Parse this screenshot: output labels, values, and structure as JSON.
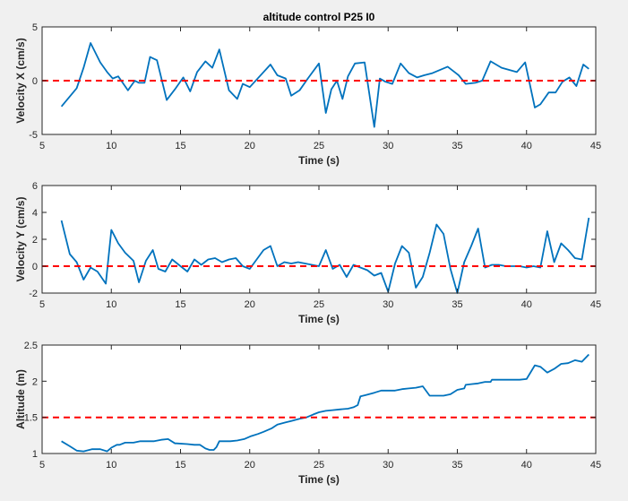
{
  "figure": {
    "background": "#f0f0f0",
    "axes_background": "#ffffff",
    "axis_color": "#262626"
  },
  "chart_data": [
    {
      "type": "line",
      "title": "altitude control P25 I0",
      "xlabel": "Time (s)",
      "ylabel": "Velocity X (cm/s)",
      "xlim": [
        5,
        45
      ],
      "ylim": [
        -5,
        5
      ],
      "xticks": [
        5,
        10,
        15,
        20,
        25,
        30,
        35,
        40,
        45
      ],
      "yticks": [
        -5,
        0,
        5
      ],
      "grid": false,
      "series": [
        {
          "color": "#0072BD",
          "style": "solid",
          "x": [
            6.4,
            7.5,
            8.0,
            8.5,
            9.2,
            9.7,
            10.1,
            10.5,
            11.2,
            11.7,
            12.0,
            12.4,
            12.8,
            13.3,
            14.0,
            14.6,
            15.2,
            15.7,
            16.2,
            16.8,
            17.3,
            17.8,
            18.5,
            19.1,
            19.5,
            20.0,
            20.5,
            21.5,
            22.0,
            22.6,
            23.0,
            23.6,
            24.2,
            25.0,
            25.5,
            25.9,
            26.3,
            26.7,
            27.1,
            27.6,
            28.3,
            29.0,
            29.4,
            29.8,
            30.3,
            30.9,
            31.5,
            32.1,
            32.6,
            33.2,
            34.3,
            35.1,
            35.6,
            36.3,
            36.8,
            37.4,
            38.2,
            39.3,
            39.9,
            40.6,
            41.0,
            41.6,
            42.1,
            42.6,
            43.1,
            43.6,
            44.1,
            44.5
          ],
          "y": [
            -2.4,
            -0.7,
            1.2,
            3.5,
            1.7,
            0.8,
            0.2,
            0.4,
            -0.9,
            0.0,
            -0.2,
            -0.2,
            2.2,
            1.9,
            -1.8,
            -0.8,
            0.3,
            -1.0,
            0.8,
            1.8,
            1.2,
            2.9,
            -0.9,
            -1.7,
            -0.3,
            -0.6,
            0.1,
            1.5,
            0.5,
            0.2,
            -1.4,
            -0.9,
            0.2,
            1.6,
            -3.0,
            -0.8,
            0.0,
            -1.7,
            0.4,
            1.6,
            1.7,
            -4.3,
            0.2,
            -0.1,
            -0.3,
            1.6,
            0.7,
            0.3,
            0.5,
            0.7,
            1.3,
            0.5,
            -0.3,
            -0.2,
            0.0,
            1.8,
            1.2,
            0.8,
            1.7,
            -2.5,
            -2.2,
            -1.1,
            -1.1,
            -0.1,
            0.3,
            -0.5,
            1.5,
            1.1
          ]
        },
        {
          "color": "#FF0000",
          "style": "dashed",
          "x": [
            5,
            45
          ],
          "y": [
            0,
            0
          ]
        }
      ]
    },
    {
      "type": "line",
      "title": "",
      "xlabel": "Time (s)",
      "ylabel": "Velocity Y (cm/s)",
      "xlim": [
        5,
        45
      ],
      "ylim": [
        -2,
        6
      ],
      "xticks": [
        5,
        10,
        15,
        20,
        25,
        30,
        35,
        40,
        45
      ],
      "yticks": [
        -2,
        0,
        2,
        4,
        6
      ],
      "grid": false,
      "series": [
        {
          "color": "#0072BD",
          "style": "solid",
          "x": [
            6.4,
            7.0,
            7.5,
            8.0,
            8.5,
            9.0,
            9.6,
            10.0,
            10.5,
            11.0,
            11.6,
            12.0,
            12.5,
            13.0,
            13.4,
            13.9,
            14.4,
            15.0,
            15.5,
            16.0,
            16.5,
            17.0,
            17.5,
            18.0,
            18.5,
            19.0,
            19.5,
            20.0,
            20.5,
            21.0,
            21.5,
            22.0,
            22.5,
            23.0,
            23.5,
            24.0,
            24.5,
            25.0,
            25.5,
            26.0,
            26.5,
            27.0,
            27.5,
            28.0,
            28.5,
            29.0,
            29.5,
            30.0,
            30.5,
            31.0,
            31.5,
            32.0,
            32.5,
            33.0,
            33.5,
            34.0,
            34.5,
            35.0,
            35.5,
            36.0,
            36.5,
            37.0,
            37.5,
            38.0,
            38.5,
            39.0,
            39.5,
            40.0,
            40.5,
            41.0,
            41.5,
            42.0,
            42.5,
            43.0,
            43.5,
            44.0,
            44.5
          ],
          "y": [
            3.4,
            0.9,
            0.3,
            -1.0,
            -0.1,
            -0.4,
            -1.3,
            2.7,
            1.7,
            1.0,
            0.4,
            -1.2,
            0.4,
            1.2,
            -0.2,
            -0.4,
            0.5,
            0.0,
            -0.4,
            0.5,
            0.1,
            0.5,
            0.6,
            0.3,
            0.5,
            0.6,
            0.0,
            -0.2,
            0.5,
            1.2,
            1.5,
            0.0,
            0.3,
            0.2,
            0.3,
            0.2,
            0.1,
            0.0,
            1.2,
            -0.2,
            0.1,
            -0.8,
            0.1,
            -0.1,
            -0.3,
            -0.7,
            -0.5,
            -1.9,
            0.2,
            1.5,
            1.0,
            -1.6,
            -0.8,
            1.0,
            3.1,
            2.4,
            -0.2,
            -2.0,
            0.3,
            1.5,
            2.8,
            -0.1,
            0.1,
            0.1,
            0.0,
            0.0,
            0.0,
            -0.1,
            0.0,
            -0.1,
            2.6,
            0.3,
            1.7,
            1.2,
            0.6,
            0.5,
            3.6
          ]
        },
        {
          "color": "#FF0000",
          "style": "dashed",
          "x": [
            5,
            45
          ],
          "y": [
            0,
            0
          ]
        }
      ]
    },
    {
      "type": "line",
      "title": "",
      "xlabel": "Time (s)",
      "ylabel": "Altitude (m)",
      "xlim": [
        5,
        45
      ],
      "ylim": [
        1,
        2.5
      ],
      "xticks": [
        5,
        10,
        15,
        20,
        25,
        30,
        35,
        40,
        45
      ],
      "yticks": [
        1,
        1.5,
        2,
        2.5
      ],
      "grid": false,
      "series": [
        {
          "color": "#0072BD",
          "style": "solid",
          "x": [
            6.4,
            7.0,
            7.5,
            8.0,
            8.6,
            9.2,
            9.7,
            10.0,
            10.4,
            10.6,
            11.0,
            11.6,
            12.1,
            12.6,
            13.1,
            13.6,
            14.1,
            14.6,
            14.7,
            15.5,
            16.0,
            16.4,
            16.8,
            17.1,
            17.4,
            17.6,
            17.8,
            18.1,
            18.6,
            19.1,
            19.6,
            20.1,
            20.6,
            21.0,
            21.6,
            22.0,
            22.6,
            23.0,
            23.6,
            24.1,
            24.6,
            25.0,
            25.5,
            26.0,
            26.5,
            27.1,
            27.5,
            27.8,
            28.0,
            28.4,
            29.0,
            29.5,
            30.0,
            30.5,
            31.0,
            31.5,
            32.0,
            32.5,
            33.0,
            33.5,
            34.0,
            34.5,
            35.0,
            35.5,
            35.6,
            36.0,
            36.5,
            37.0,
            37.4,
            37.5,
            38.0,
            38.5,
            39.0,
            39.5,
            40.0,
            40.6,
            41.0,
            41.5,
            42.0,
            42.5,
            43.0,
            43.5,
            44.0,
            44.5
          ],
          "y": [
            1.17,
            1.1,
            1.04,
            1.03,
            1.06,
            1.06,
            1.03,
            1.08,
            1.12,
            1.12,
            1.15,
            1.15,
            1.17,
            1.17,
            1.17,
            1.19,
            1.2,
            1.14,
            1.14,
            1.13,
            1.12,
            1.12,
            1.07,
            1.05,
            1.05,
            1.09,
            1.17,
            1.17,
            1.17,
            1.18,
            1.2,
            1.24,
            1.27,
            1.3,
            1.35,
            1.4,
            1.43,
            1.45,
            1.48,
            1.5,
            1.54,
            1.57,
            1.59,
            1.6,
            1.61,
            1.62,
            1.64,
            1.67,
            1.79,
            1.81,
            1.84,
            1.87,
            1.87,
            1.87,
            1.89,
            1.9,
            1.91,
            1.93,
            1.8,
            1.8,
            1.8,
            1.82,
            1.88,
            1.9,
            1.95,
            1.96,
            1.97,
            1.99,
            1.99,
            2.02,
            2.02,
            2.02,
            2.02,
            2.02,
            2.03,
            2.22,
            2.2,
            2.12,
            2.17,
            2.24,
            2.25,
            2.29,
            2.27,
            2.37
          ]
        },
        {
          "color": "#FF0000",
          "style": "dashed",
          "x": [
            5,
            45
          ],
          "y": [
            1.5,
            1.5
          ]
        }
      ]
    }
  ]
}
